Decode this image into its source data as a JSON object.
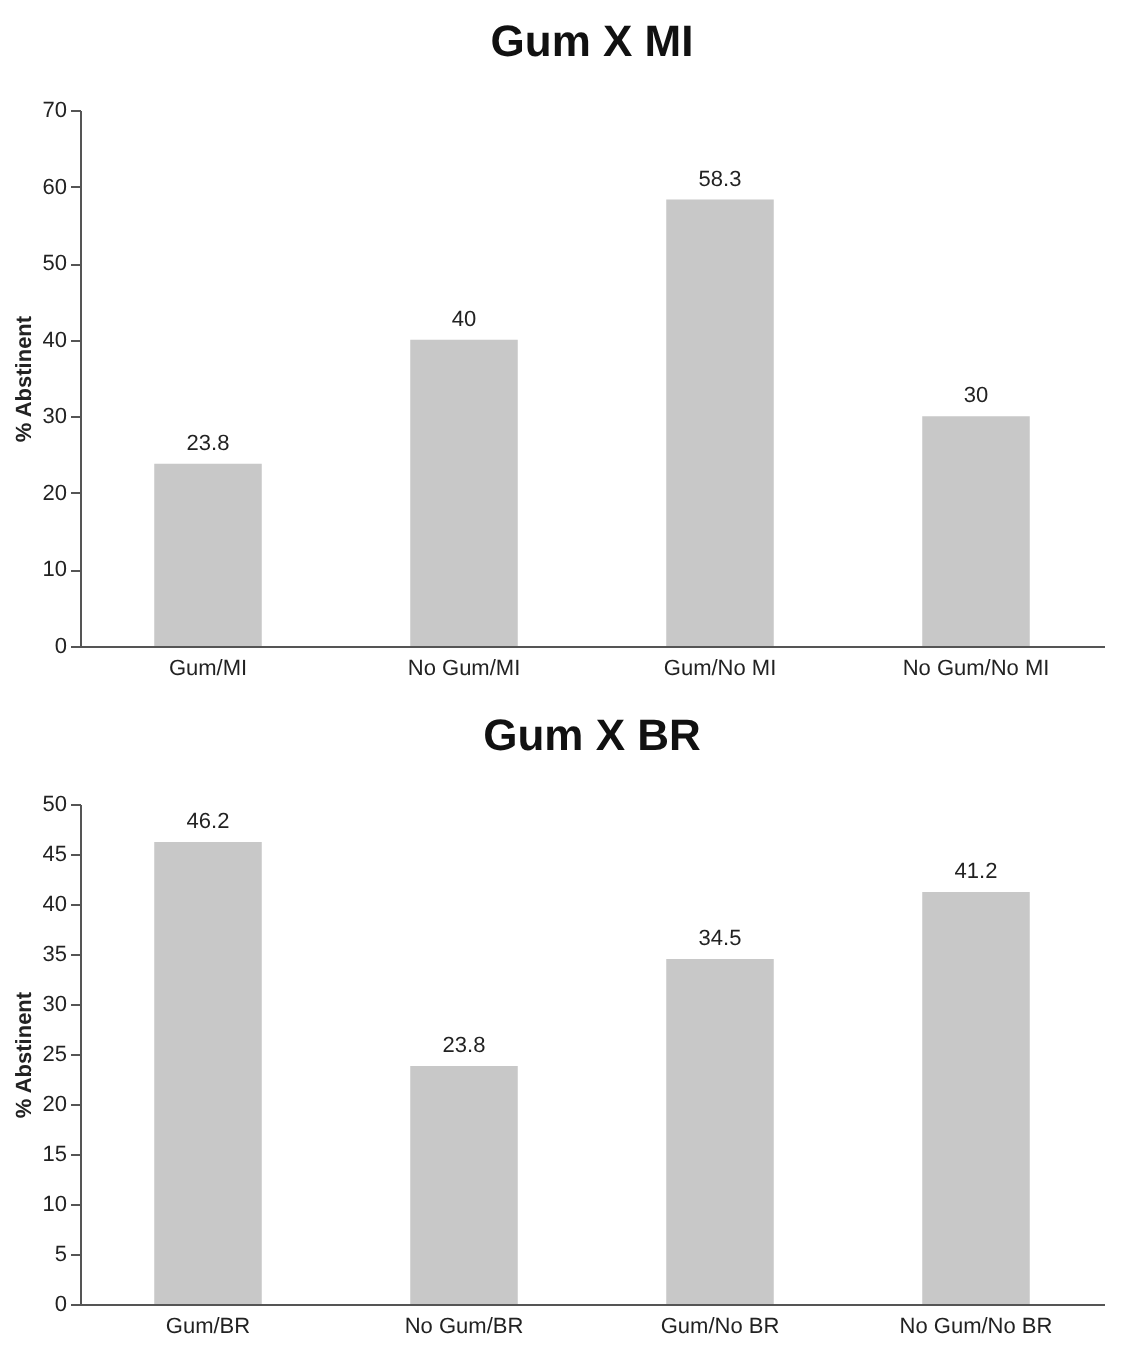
{
  "chart_data": [
    {
      "type": "bar",
      "title": "Gum X MI",
      "ylabel": "% Abstinent",
      "categories": [
        "Gum/MI",
        "No Gum/MI",
        "Gum/No MI",
        "No Gum/No MI"
      ],
      "values": [
        23.8,
        40,
        58.3,
        30
      ],
      "color": "#c8c8c8",
      "ylim": [
        0,
        70
      ],
      "yticks": [
        0,
        10,
        20,
        30,
        40,
        50,
        60,
        70
      ],
      "data_labels": true,
      "grid": false
    },
    {
      "type": "bar",
      "title": "Gum X BR",
      "ylabel": "% Abstinent",
      "categories": [
        "Gum/BR",
        "No Gum/BR",
        "Gum/No BR",
        "No Gum/No BR"
      ],
      "values": [
        46.2,
        23.8,
        34.5,
        41.2
      ],
      "color": "#c8c8c8",
      "ylim": [
        0,
        50
      ],
      "yticks": [
        0,
        5,
        10,
        15,
        20,
        25,
        30,
        35,
        40,
        45,
        50
      ],
      "data_labels": true,
      "grid": false
    }
  ]
}
